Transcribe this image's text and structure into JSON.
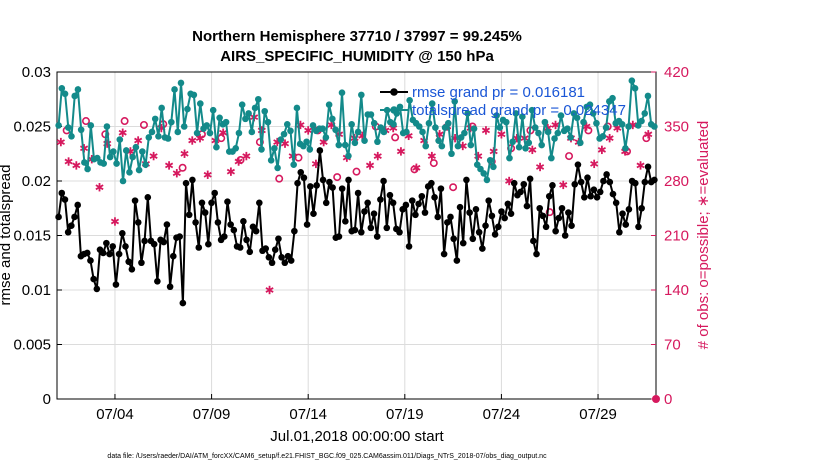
{
  "chart_data": {
    "type": "line",
    "title": "Northern Hemisphere 37710 / 37997 = 99.245%",
    "subtitle": "AIRS_SPECIFIC_HUMIDITY @ 150 hPa",
    "xlabel": "Jul.01,2018 00:00:00 start",
    "ylabel": "rmse and totalspread",
    "ylabel_right": "# of obs: o=possible; ∗=evaluated",
    "footer": "data file: /Users/raeder/DAI/ATM_forcXX/CAM6_setup/f.e21.FHIST_BGC.f09_025.CAM6assim.011/Diags_NTrS_2018-07/obs_diag_output.nc",
    "x_ticks": [
      {
        "day": 4,
        "label": "07/04"
      },
      {
        "day": 9,
        "label": "07/09"
      },
      {
        "day": 14,
        "label": "07/14"
      },
      {
        "day": 19,
        "label": "07/19"
      },
      {
        "day": 24,
        "label": "07/24"
      },
      {
        "day": 29,
        "label": "07/29"
      }
    ],
    "xlim_days": [
      1.0,
      32.0
    ],
    "ylim": [
      0,
      0.03
    ],
    "y_ticks": [
      "0",
      "0.005",
      "0.01",
      "0.015",
      "0.02",
      "0.025",
      "0.03"
    ],
    "y2lim": [
      0,
      420
    ],
    "y2_ticks": [
      "0",
      "70",
      "140",
      "210",
      "280",
      "350",
      "420"
    ],
    "grid": true,
    "legend_position": "top-right",
    "colors": {
      "rmse": "#000000",
      "spread": "#138a8a",
      "obs": "#d6195e",
      "legend_text": "#1a56d6"
    },
    "series": [
      {
        "name": "rmse grand pr = 0.016181",
        "axis": "left",
        "values": [
          0.0167,
          0.0189,
          0.0183,
          0.0153,
          0.0159,
          0.0167,
          0.0178,
          0.0131,
          0.0133,
          0.0134,
          0.0127,
          0.011,
          0.0101,
          0.0137,
          0.0134,
          0.0143,
          0.0133,
          0.014,
          0.0105,
          0.0133,
          0.0152,
          0.014,
          0.0126,
          0.0119,
          0.0182,
          0.0162,
          0.0125,
          0.0145,
          0.0185,
          0.0145,
          0.0142,
          0.0108,
          0.0146,
          0.0144,
          0.016,
          0.0103,
          0.0131,
          0.0148,
          0.0149,
          0.0088,
          0.0198,
          0.0169,
          0.0201,
          0.0162,
          0.0139,
          0.018,
          0.0171,
          0.0142,
          0.018,
          0.0189,
          0.0162,
          0.0146,
          0.0149,
          0.0181,
          0.016,
          0.0155,
          0.014,
          0.0139,
          0.0163,
          0.0146,
          0.0135,
          0.0158,
          0.0154,
          0.018,
          0.0136,
          0.0138,
          0.013,
          0.0125,
          0.0137,
          0.0147,
          0.013,
          0.0125,
          0.0131,
          0.0127,
          0.0154,
          0.0198,
          0.0208,
          0.0203,
          0.016,
          0.0195,
          0.017,
          0.0196,
          0.0228,
          0.0201,
          0.018,
          0.0199,
          0.0194,
          0.0148,
          0.0149,
          0.0193,
          0.0163,
          0.0201,
          0.0154,
          0.0155,
          0.0189,
          0.0153,
          0.0172,
          0.018,
          0.0157,
          0.017,
          0.0149,
          0.0183,
          0.02,
          0.0157,
          0.0187,
          0.018,
          0.0156,
          0.0153,
          0.0174,
          0.0178,
          0.014,
          0.0182,
          0.0169,
          0.0179,
          0.0186,
          0.0171,
          0.0195,
          0.0198,
          0.0185,
          0.0167,
          0.0193,
          0.0133,
          0.0162,
          0.0167,
          0.0147,
          0.0127,
          0.0176,
          0.0143,
          0.0201,
          0.0171,
          0.0147,
          0.0174,
          0.0153,
          0.0138,
          0.0159,
          0.0182,
          0.0168,
          0.0151,
          0.0158,
          0.0172,
          0.0166,
          0.0179,
          0.017,
          0.0198,
          0.0187,
          0.019,
          0.0197,
          0.0177,
          0.0202,
          0.0145,
          0.0133,
          0.0175,
          0.0168,
          0.0158,
          0.0186,
          0.0196,
          0.0154,
          0.0166,
          0.0175,
          0.015,
          0.0171,
          0.0159,
          0.0197,
          0.0215,
          0.0199,
          0.0185,
          0.0203,
          0.0186,
          0.0192,
          0.0185,
          0.019,
          0.02,
          0.0206,
          0.0199,
          0.0188,
          0.018,
          0.0153,
          0.017,
          0.016,
          0.0174,
          0.02,
          0.0198,
          0.0158,
          0.0175,
          0.0199,
          0.0213,
          0.0199,
          0.0201
        ]
      },
      {
        "name": "totalspread grand pr = 0.024347",
        "axis": "left",
        "values": [
          0.0251,
          0.0285,
          0.028,
          0.0249,
          0.0241,
          0.0278,
          0.0284,
          0.0247,
          0.0217,
          0.0211,
          0.0251,
          0.022,
          0.0221,
          0.0217,
          0.0216,
          0.025,
          0.0222,
          0.0227,
          0.0216,
          0.0238,
          0.02,
          0.0228,
          0.0208,
          0.0222,
          0.0231,
          0.021,
          0.0227,
          0.0215,
          0.024,
          0.0245,
          0.0257,
          0.0241,
          0.0267,
          0.024,
          0.0239,
          0.0254,
          0.0284,
          0.0245,
          0.029,
          0.025,
          0.0266,
          0.028,
          0.0279,
          0.0244,
          0.0271,
          0.0248,
          0.0251,
          0.0244,
          0.0265,
          0.0231,
          0.0258,
          0.0252,
          0.0254,
          0.0227,
          0.0227,
          0.023,
          0.0244,
          0.027,
          0.0257,
          0.0262,
          0.0245,
          0.0267,
          0.0275,
          0.0229,
          0.0264,
          0.0254,
          0.0219,
          0.023,
          0.0212,
          0.0238,
          0.0243,
          0.0252,
          0.0246,
          0.0215,
          0.0267,
          0.0234,
          0.0232,
          0.0236,
          0.0229,
          0.0251,
          0.0246,
          0.0248,
          0.0248,
          0.024,
          0.027,
          0.0257,
          0.0247,
          0.0233,
          0.0281,
          0.0233,
          0.0223,
          0.0252,
          0.0235,
          0.0245,
          0.0279,
          0.0237,
          0.0261,
          0.0261,
          0.0253,
          0.0236,
          0.0249,
          0.0245,
          0.0265,
          0.0254,
          0.0252,
          0.0262,
          0.0268,
          0.0244,
          0.0245,
          0.0274,
          0.0256,
          0.0253,
          0.025,
          0.0245,
          0.0232,
          0.0253,
          0.0271,
          0.0249,
          0.0237,
          0.0232,
          0.0249,
          0.0253,
          0.0225,
          0.0273,
          0.0232,
          0.024,
          0.0244,
          0.0262,
          0.0233,
          0.0248,
          0.0215,
          0.0211,
          0.0207,
          0.0201,
          0.0219,
          0.0213,
          0.026,
          0.0249,
          0.0256,
          0.0254,
          0.0221,
          0.0236,
          0.0262,
          0.0231,
          0.0259,
          0.023,
          0.0235,
          0.0265,
          0.0249,
          0.0244,
          0.0233,
          0.0254,
          0.0245,
          0.0221,
          0.0239,
          0.0244,
          0.026,
          0.0246,
          0.0248,
          0.024,
          0.0262,
          0.0258,
          0.0235,
          0.0254,
          0.0268,
          0.027,
          0.0262,
          0.0253,
          0.0239,
          0.0241,
          0.0249,
          0.0273,
          0.0276,
          0.0253,
          0.0255,
          0.0252,
          0.023,
          0.025,
          0.0292,
          0.0285,
          0.0251,
          0.0255,
          0.0262,
          0.0278,
          0.0252,
          0.025
        ]
      },
      {
        "name": "possible obs",
        "axis": "right",
        "marker": "o",
        "x_days": [
          1.5,
          2.5,
          3.5,
          4.5,
          5.5,
          6.5,
          7.5,
          8.5,
          9.5,
          10.5,
          11.5,
          12.5,
          13.5,
          14.5,
          15.5,
          16.5,
          17.5,
          18.5,
          19.5,
          20.5,
          21.5,
          22.5,
          23.5,
          24.5,
          25.5,
          26.5,
          27.5,
          28.5,
          29.5,
          30.5,
          31.5
        ],
        "values": [
          345,
          357,
          340,
          357,
          352,
          353,
          297,
          340,
          335,
          307,
          330,
          283,
          310,
          345,
          285,
          292,
          350,
          336,
          295,
          303,
          272,
          350,
          305,
          322,
          345,
          240,
          312,
          345,
          350,
          318,
          335
        ]
      },
      {
        "name": "evaluated obs",
        "axis": "right",
        "marker": "*",
        "x_days": [
          1.2,
          1.6,
          2.0,
          2.4,
          2.8,
          3.2,
          3.6,
          4.0,
          4.4,
          4.8,
          5.2,
          5.6,
          6.0,
          6.4,
          6.8,
          7.2,
          7.6,
          8.0,
          8.4,
          8.8,
          9.2,
          9.6,
          10.0,
          10.4,
          10.8,
          11.2,
          11.6,
          12.0,
          12.4,
          12.8,
          13.2,
          13.6,
          14.0,
          14.4,
          14.8,
          15.2,
          15.6,
          16.0,
          16.4,
          16.8,
          17.2,
          17.6,
          18.0,
          18.4,
          18.8,
          19.2,
          19.6,
          20.0,
          20.4,
          20.8,
          21.2,
          21.6,
          22.0,
          22.4,
          22.8,
          23.2,
          23.6,
          24.0,
          24.4,
          24.8,
          25.2,
          25.6,
          26.0,
          26.4,
          26.8,
          27.2,
          27.6,
          28.0,
          28.4,
          28.8,
          29.2,
          29.6,
          30.0,
          30.4,
          30.8,
          31.2,
          31.6
        ],
        "values": [
          330,
          305,
          300,
          322,
          308,
          272,
          328,
          228,
          342,
          318,
          332,
          302,
          312,
          348,
          300,
          290,
          315,
          332,
          335,
          288,
          332,
          342,
          292,
          305,
          312,
          362,
          345,
          140,
          330,
          328,
          312,
          352,
          345,
          302,
          330,
          352,
          340,
          310,
          335,
          338,
          300,
          312,
          345,
          348,
          318,
          338,
          297,
          332,
          312,
          340,
          350,
          335,
          325,
          348,
          312,
          345,
          318,
          340,
          280,
          335,
          335,
          320,
          298,
          348,
          352,
          275,
          335,
          330,
          350,
          302,
          320,
          335,
          348,
          318,
          352,
          300,
          340
        ]
      }
    ]
  }
}
